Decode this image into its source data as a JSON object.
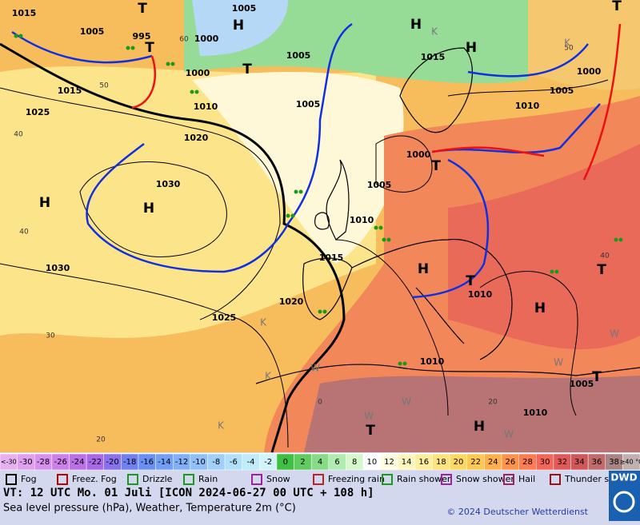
{
  "map": {
    "pressure_labels": [
      "1015",
      "1005",
      "995",
      "1000",
      "1005",
      "1005",
      "1000",
      "1015",
      "1025",
      "1010",
      "1020",
      "1005",
      "1030",
      "1005",
      "1000",
      "1010",
      "1015",
      "1030",
      "1020",
      "1025",
      "1015",
      "1000",
      "1005",
      "1010",
      "1010",
      "1010",
      "1005",
      "1010"
    ],
    "latitude_labels": [
      "60",
      "50",
      "40",
      "40",
      "30",
      "20",
      "0",
      "20",
      "40",
      "50"
    ],
    "pressure_centers": [
      "T",
      "H",
      "T",
      "T",
      "H",
      "H",
      "T",
      "H",
      "H",
      "T",
      "H",
      "T",
      "H",
      "T",
      "T",
      "T",
      "H"
    ],
    "air_mass_marks": [
      "K",
      "K",
      "K",
      "K",
      "W",
      "W",
      "W",
      "W",
      "W",
      "W",
      "K"
    ]
  },
  "scale": [
    {
      "label": "<-30",
      "color": "#e8b0f0"
    },
    {
      "label": "-30",
      "color": "#e0a0f0"
    },
    {
      "label": "-28",
      "color": "#d890ee"
    },
    {
      "label": "-26",
      "color": "#cc80ec"
    },
    {
      "label": "-24",
      "color": "#bb70ea"
    },
    {
      "label": "-22",
      "color": "#a868e8"
    },
    {
      "label": "-20",
      "color": "#8870ee"
    },
    {
      "label": "-18",
      "color": "#7080f0"
    },
    {
      "label": "-16",
      "color": "#6890f4"
    },
    {
      "label": "-14",
      "color": "#70a0f6"
    },
    {
      "label": "-12",
      "color": "#80b0f8"
    },
    {
      "label": "-10",
      "color": "#90c0f8"
    },
    {
      "label": "-8",
      "color": "#a0d0fa"
    },
    {
      "label": "-6",
      "color": "#b0e0fa"
    },
    {
      "label": "-4",
      "color": "#c0ecfa"
    },
    {
      "label": "-2",
      "color": "#d0f4fa"
    },
    {
      "label": "0",
      "color": "#40c040"
    },
    {
      "label": "2",
      "color": "#60cc60"
    },
    {
      "label": "4",
      "color": "#88dc88"
    },
    {
      "label": "6",
      "color": "#b0ecb0"
    },
    {
      "label": "8",
      "color": "#d4f8cc"
    },
    {
      "label": "10",
      "color": "#ffffff"
    },
    {
      "label": "12",
      "color": "#fffce0"
    },
    {
      "label": "14",
      "color": "#fff6c0"
    },
    {
      "label": "16",
      "color": "#ffee9c"
    },
    {
      "label": "18",
      "color": "#ffe47c"
    },
    {
      "label": "20",
      "color": "#ffd860"
    },
    {
      "label": "22",
      "color": "#ffc850"
    },
    {
      "label": "24",
      "color": "#ffb048"
    },
    {
      "label": "26",
      "color": "#ff9448"
    },
    {
      "label": "28",
      "color": "#ff7c50"
    },
    {
      "label": "30",
      "color": "#f46658"
    },
    {
      "label": "32",
      "color": "#e45858"
    },
    {
      "label": "34",
      "color": "#d05858"
    },
    {
      "label": "36",
      "color": "#c06a6a"
    },
    {
      "label": "38",
      "color": "#a88484"
    },
    {
      "label": "≥40 °C",
      "color": "#c0b0b0"
    }
  ],
  "weather_legend": [
    "Fog",
    "Freez. Fog",
    "Drizzle",
    "Rain",
    "Snow",
    "Freezing rain",
    "Rain shower",
    "Snow shower",
    "Hail",
    "Thunder storm"
  ],
  "footer": {
    "valid_time": "VT: 12 UTC Mo.  01 Juli [ICON 2024-06-27  00 UTC + 108 h]",
    "description": "Sea level pressure (hPa), Weather, Temperature 2m (°C)",
    "copyright": "© 2024 Deutscher Wetterdienst",
    "logo": "DWD"
  }
}
